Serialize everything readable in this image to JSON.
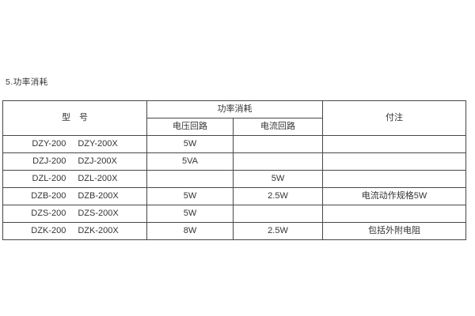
{
  "page": {
    "section_title": "5.功率消耗",
    "background": "#ffffff"
  },
  "colors": {
    "border": "#474747",
    "text": "#333333"
  },
  "table": {
    "header": {
      "model": "型　号",
      "power_group": "功率消耗",
      "voltage_circuit": "电压回路",
      "current_circuit": "电流回路",
      "note": "付注"
    },
    "rows": [
      {
        "model_a": "DZY-200",
        "model_b": "DZY-200X",
        "voltage": "5W",
        "current": "",
        "note": ""
      },
      {
        "model_a": "DZJ-200",
        "model_b": "DZJ-200X",
        "voltage": "5VA",
        "current": "",
        "note": ""
      },
      {
        "model_a": "DZL-200",
        "model_b": "DZL-200X",
        "voltage": "",
        "current": "5W",
        "note": ""
      },
      {
        "model_a": "DZB-200",
        "model_b": "DZB-200X",
        "voltage": "5W",
        "current": "2.5W",
        "note": "电流动作规格5W"
      },
      {
        "model_a": "DZS-200",
        "model_b": "DZS-200X",
        "voltage": "5W",
        "current": "",
        "note": ""
      },
      {
        "model_a": "DZK-200",
        "model_b": "DZK-200X",
        "voltage": "8W",
        "current": "2.5W",
        "note": "包括外附电阻"
      }
    ]
  }
}
